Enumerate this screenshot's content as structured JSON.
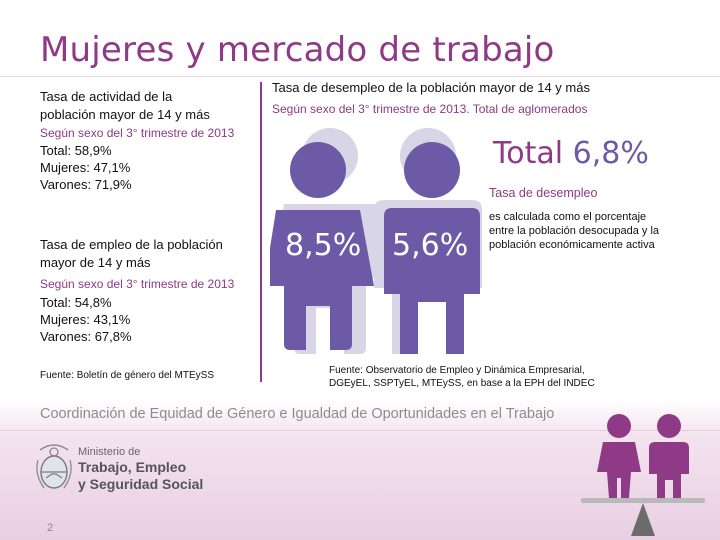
{
  "page": {
    "title": "Mujeres y mercado de trabajo",
    "page_number": "2"
  },
  "left": {
    "activity": {
      "heading_line1": "Tasa de actividad de la",
      "heading_line2": "población mayor de 14 y más",
      "subtitle": "Según sexo  del 3° trimestre de 2013",
      "total_label": "Total: ",
      "total_value": "58,9%",
      "women_label": "Mujeres: ",
      "women_value": "47,1%",
      "men_label": "Varones: ",
      "men_value": "71,9%"
    },
    "employment": {
      "heading_line1": "Tasa de empleo de la población",
      "heading_line2": "mayor de 14 y más",
      "subtitle": "Según sexo del 3° trimestre de 2013",
      "total_label": "Total: ",
      "total_value": "54,8%",
      "women_label": "Mujeres: ",
      "women_value": "43,1%",
      "men_label": "Varones: ",
      "men_value": "67,8%"
    },
    "source": "Fuente: Boletín de género del MTEySS"
  },
  "right": {
    "heading": "Tasa de desempleo de la población mayor de 14 y más",
    "subtitle": "Según sexo del  3° trimestre de 2013. Total de aglomerados",
    "total_label": "Total ",
    "total_value": "6,8%",
    "women_rate": "8,5%",
    "men_rate": "5,6%",
    "def_title": "Tasa de desempleo",
    "def_line1": "es calculada como el porcentaje",
    "def_line2": "entre la población desocupada y la",
    "def_line3": "población económicamente activa",
    "source_line1": "Fuente: Observatorio de Empleo y Dinámica Empresarial,",
    "source_line2": "DGEyEL, SSPTyEL, MTEySS, en base a la EPH del INDEC"
  },
  "footer": {
    "coordination": "Coordinación de Equidad de Género e Igualdad de Oportunidades en el Trabajo",
    "ministry_line1": "Ministerio de",
    "ministry_line2": "Trabajo, Empleo",
    "ministry_line3": "y Seguridad Social"
  },
  "colors": {
    "accent": "#8e3a86",
    "figure": "#6c5aa7",
    "figure_shadow": "#d8d6e6",
    "footer_band": "#e9cfe3"
  }
}
